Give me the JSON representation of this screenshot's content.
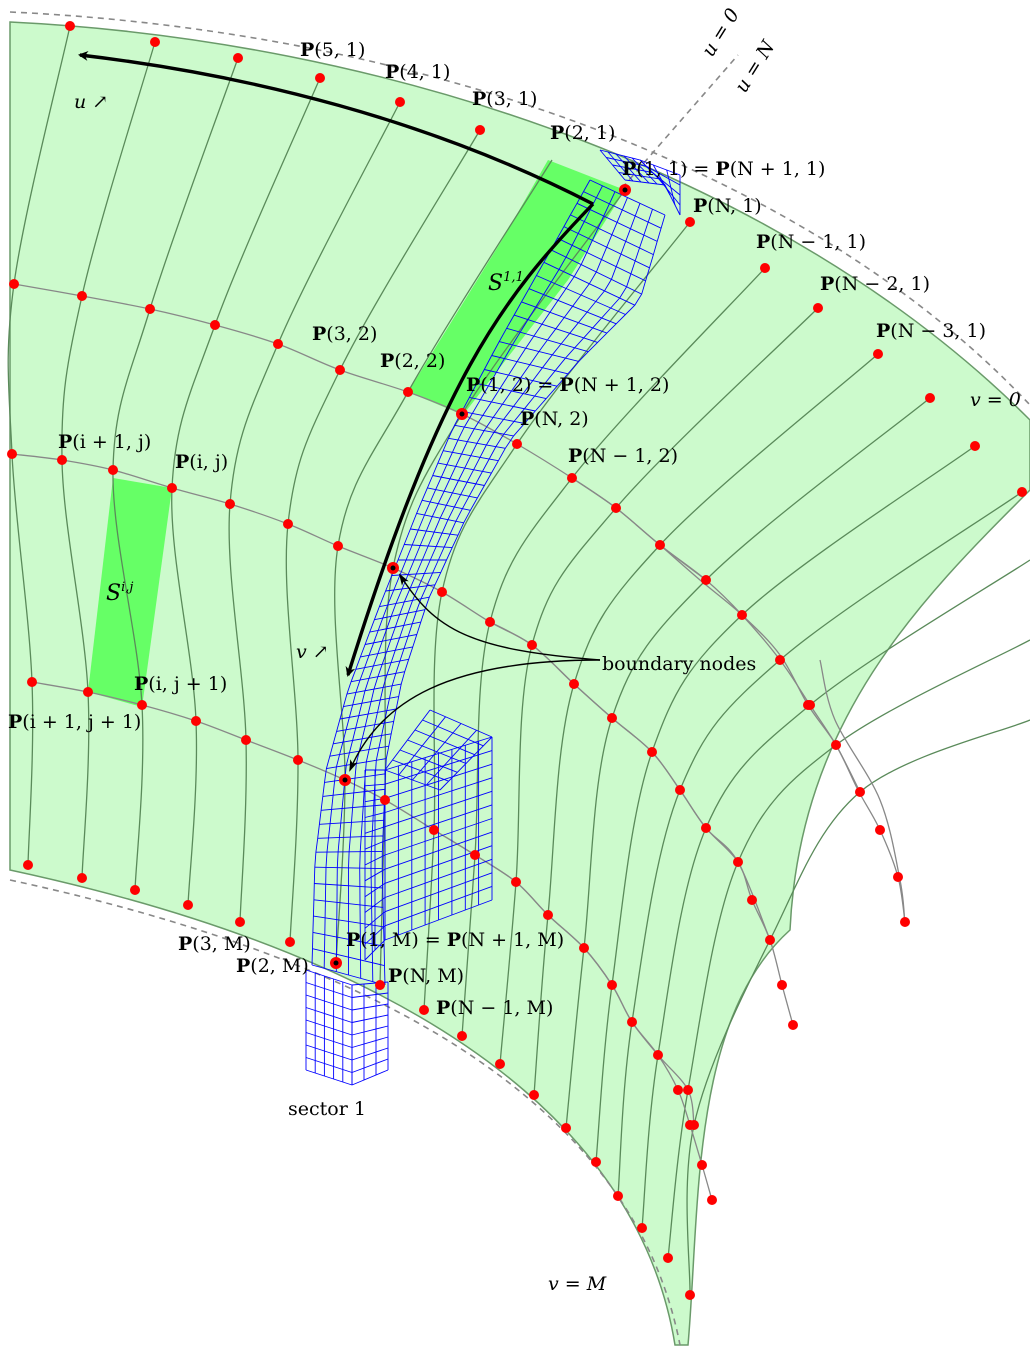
{
  "diagram": {
    "colors": {
      "region_fill": "#ccfacc",
      "region_edge": "#6a9a6a",
      "highlight_patch": "#66ff66",
      "grid_line": "#888888",
      "node": "#ff0000",
      "mesh": "#0000ff",
      "dashed": "#888888",
      "arrow": "#000000"
    },
    "grid": {
      "u_count": 17,
      "v_count": 6,
      "top_row_nodes": [
        "P(5, 1)",
        "P(4, 1)",
        "P(3, 1)",
        "P(2, 1)",
        "P(1, 1) = P(N + 1, 1)",
        "P(N, 1)",
        "P(N − 1, 1)",
        "P(N − 2, 1)",
        "P(N − 3, 1)"
      ],
      "second_row_nodes": [
        "P(3, 2)",
        "P(2, 2)",
        "P(1, 2) = P(N + 1, 2)",
        "P(N, 2)",
        "P(N − 1, 2)"
      ],
      "mid_nodes": [
        "P(i + 1, j)",
        "P(i, j)",
        "P(i, j + 1)",
        "P(i + 1, j + 1)"
      ],
      "bottom_row_nodes": [
        "P(3, M)",
        "P(2, M)",
        "P(1, M) = P(N + 1, M)",
        "P(N, M)",
        "P(N − 1, M)"
      ]
    },
    "labels": {
      "p51": {
        "b": "P",
        "r": "(5, 1)"
      },
      "p41": {
        "b": "P",
        "r": "(4, 1)"
      },
      "p31": {
        "b": "P",
        "r": "(3, 1)"
      },
      "p21": {
        "b": "P",
        "r": "(2, 1)"
      },
      "p11": {
        "b": "P",
        "r": "(1, 1) = ",
        "b2": "P",
        "r2": "(N + 1, 1)"
      },
      "pN1": {
        "b": "P",
        "r": "(N, 1)"
      },
      "pNm1_1": {
        "b": "P",
        "r": "(N − 1, 1)"
      },
      "pNm2_1": {
        "b": "P",
        "r": "(N − 2, 1)"
      },
      "pNm3_1": {
        "b": "P",
        "r": "(N − 3, 1)"
      },
      "p32": {
        "b": "P",
        "r": "(3, 2)"
      },
      "p22": {
        "b": "P",
        "r": "(2, 2)"
      },
      "p12": {
        "b": "P",
        "r": "(1, 2) = ",
        "b2": "P",
        "r2": "(N + 1, 2)"
      },
      "pN2": {
        "b": "P",
        "r": "(N, 2)"
      },
      "pNm1_2": {
        "b": "P",
        "r": "(N − 1, 2)"
      },
      "pi1j": {
        "b": "P",
        "r": "(i + 1, j)"
      },
      "pij": {
        "b": "P",
        "r": "(i, j)"
      },
      "pij1": {
        "b": "P",
        "r": "(i, j + 1)"
      },
      "pi1j1": {
        "b": "P",
        "r": "(i + 1, j + 1)"
      },
      "p3M": {
        "b": "P",
        "r": "(3, M)"
      },
      "p2M": {
        "b": "P",
        "r": "(2, M)"
      },
      "p1M": {
        "b": "P",
        "r": "(1, M) = ",
        "b2": "P",
        "r2": "(N + 1, M)"
      },
      "pNM": {
        "b": "P",
        "r": "(N, M)"
      },
      "pNm1_M": {
        "b": "P",
        "r": "(N − 1, M)"
      },
      "u_dir": "u ↗",
      "v_dir": "v ↗",
      "u_eq_0": "u = 0",
      "u_eq_N": "u = N",
      "v_eq_0": "v = 0",
      "v_eq_M": "v = M",
      "s11_base": "S",
      "s11_sup": "1,1",
      "sij_base": "S",
      "sij_sup": "i,j",
      "boundary_nodes": "boundary nodes",
      "sector_1": "sector 1"
    }
  }
}
